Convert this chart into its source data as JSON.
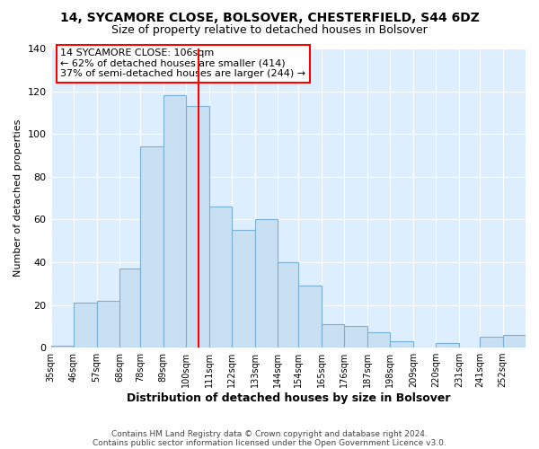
{
  "title": "14, SYCAMORE CLOSE, BOLSOVER, CHESTERFIELD, S44 6DZ",
  "subtitle": "Size of property relative to detached houses in Bolsover",
  "xlabel": "Distribution of detached houses by size in Bolsover",
  "ylabel": "Number of detached properties",
  "bin_labels": [
    "35sqm",
    "46sqm",
    "57sqm",
    "68sqm",
    "78sqm",
    "89sqm",
    "100sqm",
    "111sqm",
    "122sqm",
    "133sqm",
    "144sqm",
    "154sqm",
    "165sqm",
    "176sqm",
    "187sqm",
    "198sqm",
    "209sqm",
    "220sqm",
    "231sqm",
    "241sqm",
    "252sqm"
  ],
  "bin_edges": [
    35,
    46,
    57,
    68,
    78,
    89,
    100,
    111,
    122,
    133,
    144,
    154,
    165,
    176,
    187,
    198,
    209,
    220,
    231,
    241,
    252,
    263
  ],
  "bar_heights": [
    1,
    21,
    22,
    37,
    94,
    118,
    113,
    66,
    55,
    60,
    40,
    29,
    11,
    10,
    7,
    3,
    0,
    2,
    0,
    5,
    6
  ],
  "bar_color": "#c9dff2",
  "bar_edge_color": "#7bafd4",
  "vline_x": 106,
  "vline_color": "red",
  "annotation_line1": "14 SYCAMORE CLOSE: 106sqm",
  "annotation_line2": "← 62% of detached houses are smaller (414)",
  "annotation_line3": "37% of semi-detached houses are larger (244) →",
  "annotation_box_facecolor": "#ffffff",
  "annotation_box_edge": "red",
  "ylim": [
    0,
    140
  ],
  "yticks": [
    0,
    20,
    40,
    60,
    80,
    100,
    120,
    140
  ],
  "footer_line1": "Contains HM Land Registry data © Crown copyright and database right 2024.",
  "footer_line2": "Contains public sector information licensed under the Open Government Licence v3.0.",
  "figure_bg": "#ffffff",
  "plot_bg": "#ddeeff",
  "grid_color": "#ffffff"
}
